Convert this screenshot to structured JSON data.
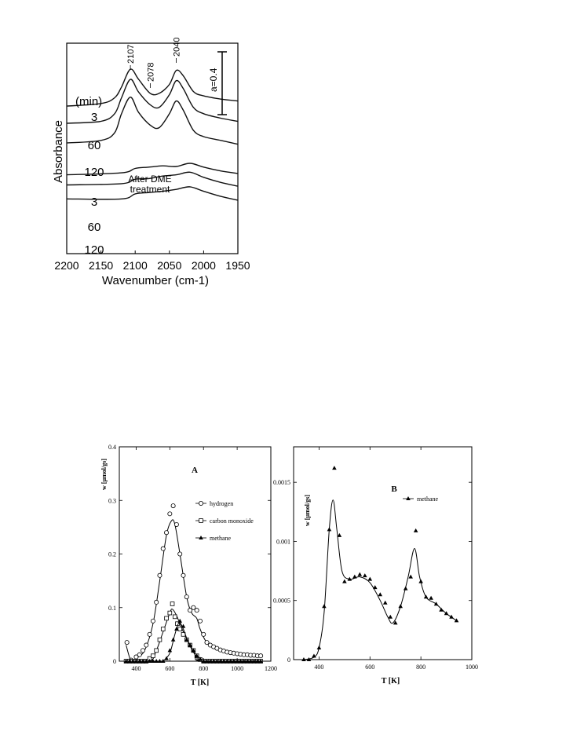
{
  "chart_data": [
    {
      "type": "line",
      "panel": "ir-spectra",
      "xlabel": "Wavenumber (cm-1)",
      "ylabel": "Absorbance",
      "xlim": [
        2200,
        1950
      ],
      "x_reversed": true,
      "xticks": [
        "2200",
        "2150",
        "2100",
        "2050",
        "2000",
        "1950"
      ],
      "scale_bar_label": "a=0.4",
      "scale_bar_value": 0.4,
      "time_unit_label": "(min)",
      "group_label_line1": "After DME",
      "group_label_line2": "treatment",
      "peak_labels": [
        "2107",
        "2078",
        "2040"
      ],
      "peak_positions": [
        2107,
        2078,
        2040
      ],
      "series": [
        {
          "name": "3",
          "x": [
            2200,
            2150,
            2130,
            2120,
            2107,
            2095,
            2078,
            2065,
            2050,
            2040,
            2030,
            2015,
            2000,
            1975,
            1950
          ],
          "values": [
            2.32,
            2.36,
            2.45,
            2.62,
            2.9,
            2.74,
            2.52,
            2.52,
            2.66,
            2.88,
            2.8,
            2.55,
            2.48,
            2.43,
            2.4
          ]
        },
        {
          "name": "60",
          "x": [
            2200,
            2150,
            2130,
            2120,
            2107,
            2095,
            2078,
            2065,
            2050,
            2040,
            2030,
            2015,
            2000,
            1975,
            1950
          ],
          "values": [
            2.05,
            2.08,
            2.2,
            2.45,
            2.74,
            2.54,
            2.34,
            2.3,
            2.5,
            2.72,
            2.6,
            2.3,
            2.2,
            2.13,
            2.08
          ]
        },
        {
          "name": "120",
          "x": [
            2200,
            2150,
            2130,
            2120,
            2107,
            2095,
            2078,
            2065,
            2050,
            2040,
            2030,
            2015,
            2000,
            1975,
            1950
          ],
          "values": [
            1.74,
            1.78,
            1.9,
            2.2,
            2.46,
            2.22,
            2.02,
            1.98,
            2.2,
            2.4,
            2.26,
            1.94,
            1.84,
            1.78,
            1.72
          ]
        },
        {
          "name": "3",
          "x": [
            2200,
            2120,
            2100,
            2080,
            2060,
            2040,
            2020,
            2000,
            1975,
            1950
          ],
          "values": [
            1.24,
            1.27,
            1.34,
            1.36,
            1.38,
            1.37,
            1.42,
            1.36,
            1.3,
            1.26
          ]
        },
        {
          "name": "60",
          "x": [
            2200,
            2120,
            2100,
            2080,
            2060,
            2040,
            2020,
            2000,
            1975,
            1950
          ],
          "values": [
            1.08,
            1.1,
            1.17,
            1.18,
            1.22,
            1.24,
            1.28,
            1.2,
            1.12,
            1.06
          ]
        },
        {
          "name": "120",
          "x": [
            2200,
            2120,
            2100,
            2080,
            2060,
            2040,
            2020,
            2000,
            1975,
            1950
          ],
          "values": [
            0.86,
            0.86,
            0.94,
            0.96,
            0.98,
            1.01,
            1.05,
            0.98,
            0.9,
            0.84
          ]
        }
      ]
    },
    {
      "type": "line",
      "panel": "A",
      "title": "A",
      "xlabel": "T [K]",
      "ylabel": "w [µmol/gs]",
      "xlim": [
        300,
        1200
      ],
      "ylim": [
        0,
        0.4
      ],
      "xticks": [
        400,
        600,
        800,
        1000,
        1200
      ],
      "yticks": [
        0,
        0.1,
        0.2,
        0.3,
        0.4
      ],
      "ytick_labels": [
        "0",
        "0.1",
        "0.2",
        "0.3",
        "0.4"
      ],
      "legend_position": "right",
      "series": [
        {
          "name": "hydrogen",
          "marker": "circle-open",
          "x": [
            345,
            370,
            400,
            420,
            440,
            460,
            480,
            500,
            520,
            540,
            560,
            580,
            600,
            620,
            640,
            660,
            680,
            700,
            720,
            740,
            760,
            780,
            800,
            820,
            840,
            860,
            880,
            900,
            920,
            940,
            960,
            980,
            1000,
            1020,
            1040,
            1060,
            1080,
            1100,
            1120,
            1140
          ],
          "values": [
            0.035,
            0.002,
            0.008,
            0.012,
            0.02,
            0.03,
            0.05,
            0.075,
            0.11,
            0.16,
            0.21,
            0.24,
            0.275,
            0.29,
            0.255,
            0.2,
            0.16,
            0.12,
            0.095,
            0.1,
            0.095,
            0.075,
            0.05,
            0.035,
            0.03,
            0.027,
            0.024,
            0.021,
            0.019,
            0.017,
            0.016,
            0.015,
            0.014,
            0.013,
            0.012,
            0.012,
            0.011,
            0.011,
            0.01,
            0.01
          ],
          "fit": [
            [
              340,
              0.03
            ],
            [
              370,
              0.0
            ],
            [
              400,
              0.005
            ],
            [
              450,
              0.02
            ],
            [
              500,
              0.07
            ],
            [
              540,
              0.15
            ],
            [
              580,
              0.235
            ],
            [
              610,
              0.262
            ],
            [
              630,
              0.255
            ],
            [
              660,
              0.2
            ],
            [
              700,
              0.12
            ],
            [
              730,
              0.09
            ],
            [
              760,
              0.08
            ],
            [
              780,
              0.06
            ],
            [
              820,
              0.035
            ],
            [
              900,
              0.02
            ],
            [
              1000,
              0.014
            ],
            [
              1140,
              0.01
            ]
          ]
        },
        {
          "name": "carbon monoxide",
          "marker": "square-open",
          "x": [
            340,
            360,
            380,
            400,
            420,
            440,
            460,
            480,
            500,
            520,
            540,
            560,
            580,
            600,
            615,
            630,
            645,
            660,
            680,
            700,
            720,
            740,
            760,
            780,
            800,
            820,
            840,
            860,
            880,
            900,
            920,
            940,
            960,
            980,
            1000,
            1020,
            1040,
            1060,
            1080,
            1100,
            1120,
            1140
          ],
          "values": [
            0.0,
            0.0,
            0.0,
            0.0,
            0.0,
            0.0,
            0.0,
            0.005,
            0.01,
            0.02,
            0.04,
            0.06,
            0.08,
            0.09,
            0.107,
            0.083,
            0.07,
            0.06,
            0.05,
            0.04,
            0.03,
            0.02,
            0.01,
            0.003,
            0.0,
            0.0,
            0.0,
            0.0,
            0.0,
            0.0,
            0.0,
            0.0,
            0.0,
            0.0,
            0.0,
            0.0,
            0.0,
            0.0,
            0.0,
            0.0,
            0.0,
            0.0
          ],
          "fit": [
            [
              340,
              0.0
            ],
            [
              480,
              0.0
            ],
            [
              520,
              0.02
            ],
            [
              560,
              0.055
            ],
            [
              600,
              0.09
            ],
            [
              615,
              0.097
            ],
            [
              640,
              0.085
            ],
            [
              680,
              0.055
            ],
            [
              720,
              0.03
            ],
            [
              760,
              0.01
            ],
            [
              800,
              0.0
            ],
            [
              1140,
              0.0
            ]
          ]
        },
        {
          "name": "methane",
          "marker": "triangle-filled",
          "x": [
            340,
            360,
            380,
            400,
            420,
            440,
            460,
            480,
            500,
            520,
            540,
            560,
            580,
            600,
            620,
            640,
            660,
            680,
            700,
            720,
            740,
            760,
            780,
            800,
            820,
            840,
            860,
            880,
            900,
            920,
            940,
            960,
            980,
            1000,
            1020,
            1040,
            1060,
            1080,
            1100,
            1120,
            1140
          ],
          "values": [
            0.0,
            0.0,
            0.0,
            0.0,
            0.0,
            0.0,
            0.0,
            0.0,
            0.0,
            0.0,
            0.0,
            0.0,
            0.005,
            0.02,
            0.04,
            0.06,
            0.075,
            0.065,
            0.04,
            0.03,
            0.02,
            0.01,
            0.004,
            0.0,
            0.0,
            0.0,
            0.0,
            0.0,
            0.0,
            0.0,
            0.0,
            0.0,
            0.0,
            0.0,
            0.0,
            0.0,
            0.0,
            0.0,
            0.0,
            0.0,
            0.0
          ],
          "fit": [
            [
              560,
              0.0
            ],
            [
              600,
              0.015
            ],
            [
              630,
              0.05
            ],
            [
              655,
              0.072
            ],
            [
              680,
              0.06
            ],
            [
              710,
              0.035
            ],
            [
              750,
              0.012
            ],
            [
              790,
              0.0
            ],
            [
              1140,
              0.0
            ]
          ]
        }
      ]
    },
    {
      "type": "line",
      "panel": "B",
      "title": "B",
      "xlabel": "T [K]",
      "ylabel": "w [µmol/gs]",
      "xlim": [
        300,
        1000
      ],
      "ylim": [
        0,
        0.0018
      ],
      "xticks": [
        400,
        600,
        800,
        1000
      ],
      "yticks": [
        0,
        0.0005,
        0.001,
        0.0015
      ],
      "ytick_labels": [
        "0",
        "0.0005",
        "0.001",
        "0.0015"
      ],
      "legend_position": "right",
      "series": [
        {
          "name": "methane",
          "marker": "triangle-filled",
          "x": [
            340,
            360,
            380,
            400,
            420,
            440,
            460,
            480,
            500,
            520,
            540,
            560,
            580,
            600,
            620,
            640,
            660,
            680,
            700,
            720,
            740,
            760,
            780,
            800,
            820,
            840,
            860,
            880,
            900,
            920,
            940
          ],
          "values": [
            0.0,
            0.0,
            3e-05,
            0.0001,
            0.00045,
            0.0011,
            0.00162,
            0.00105,
            0.00066,
            0.00068,
            0.0007,
            0.00072,
            0.00071,
            0.00068,
            0.00061,
            0.00055,
            0.00048,
            0.00036,
            0.00031,
            0.00045,
            0.0006,
            0.0007,
            0.00109,
            0.00066,
            0.00053,
            0.00052,
            0.00047,
            0.00042,
            0.00039,
            0.00036,
            0.00033
          ],
          "fit": [
            [
              340,
              0.0
            ],
            [
              380,
              2e-05
            ],
            [
              400,
              0.0001
            ],
            [
              420,
              0.0004
            ],
            [
              440,
              0.0011
            ],
            [
              455,
              0.00135
            ],
            [
              470,
              0.0011
            ],
            [
              490,
              0.00075
            ],
            [
              520,
              0.00068
            ],
            [
              560,
              0.0007
            ],
            [
              600,
              0.00065
            ],
            [
              640,
              0.0005
            ],
            [
              670,
              0.00036
            ],
            [
              690,
              0.00031
            ],
            [
              720,
              0.00045
            ],
            [
              750,
              0.0007
            ],
            [
              775,
              0.00094
            ],
            [
              795,
              0.0007
            ],
            [
              820,
              0.00053
            ],
            [
              860,
              0.00047
            ],
            [
              900,
              0.00039
            ],
            [
              940,
              0.00033
            ]
          ]
        }
      ]
    }
  ]
}
